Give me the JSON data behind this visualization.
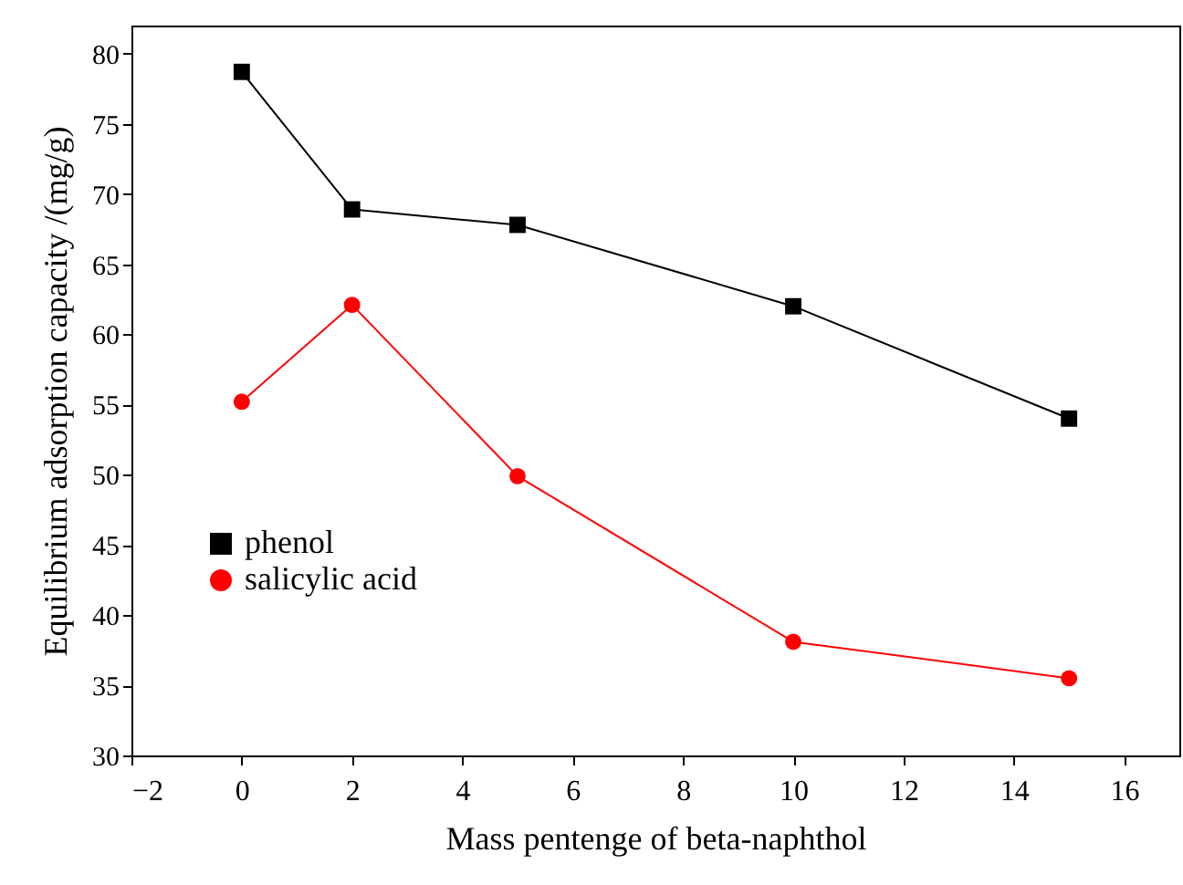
{
  "chart_data": {
    "type": "line",
    "xlabel": "Mass pentenge of beta-naphthol",
    "ylabel": "Equilibrium adsorption capacity /(mg/g)",
    "x": [
      0,
      2,
      5,
      10,
      15
    ],
    "series": [
      {
        "name": "phenol",
        "color": "#000000",
        "marker": "square",
        "values": [
          78.7,
          68.9,
          67.8,
          62.0,
          54.0
        ]
      },
      {
        "name": "salicylic acid",
        "color": "#ff0000",
        "marker": "circle",
        "values": [
          55.2,
          62.1,
          49.9,
          38.1,
          35.5
        ]
      }
    ],
    "xlim": [
      -2,
      17
    ],
    "xticks": [
      -2,
      0,
      2,
      4,
      6,
      8,
      10,
      12,
      14,
      16
    ],
    "ylim": [
      30,
      82
    ],
    "yticks": [
      30,
      35,
      40,
      45,
      50,
      55,
      60,
      65,
      70,
      75,
      80
    ],
    "grid": false,
    "legend": "left",
    "line_style": "solid"
  }
}
